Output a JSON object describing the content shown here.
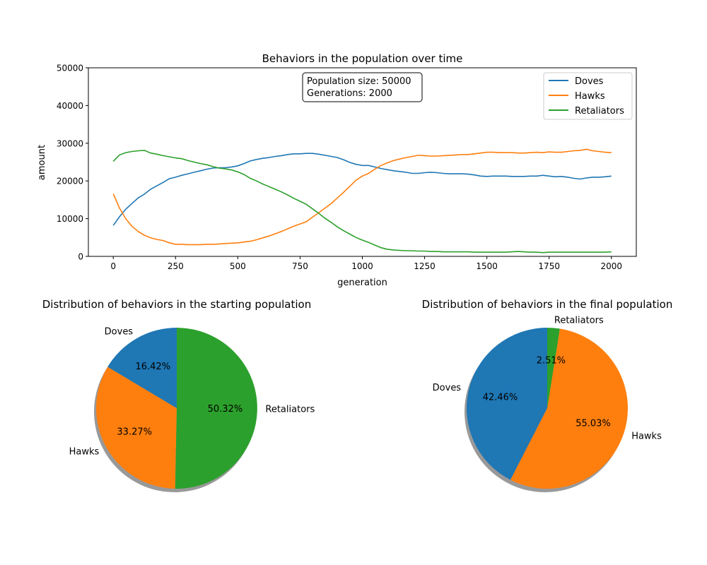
{
  "chart_data": [
    {
      "type": "line",
      "title": "Behaviors in the population over time",
      "xlabel": "generation",
      "ylabel": "amount",
      "xlim": [
        -100,
        2100
      ],
      "ylim": [
        0,
        50000
      ],
      "x_ticks": [
        0,
        250,
        500,
        750,
        1000,
        1250,
        1500,
        1750,
        2000
      ],
      "y_ticks": [
        0,
        10000,
        20000,
        30000,
        40000,
        50000
      ],
      "grid": false,
      "legend_position": "top-right",
      "annotation_lines": [
        "Population size: 50000",
        "Generations: 2000"
      ],
      "series": [
        {
          "name": "Doves",
          "color": "#1f77b4",
          "x": [
            0,
            25,
            50,
            75,
            100,
            125,
            150,
            175,
            200,
            225,
            250,
            275,
            300,
            325,
            350,
            375,
            400,
            425,
            450,
            475,
            500,
            525,
            550,
            575,
            600,
            625,
            650,
            675,
            700,
            725,
            750,
            775,
            800,
            825,
            850,
            875,
            900,
            925,
            950,
            975,
            1000,
            1025,
            1050,
            1075,
            1100,
            1125,
            1150,
            1175,
            1200,
            1225,
            1250,
            1275,
            1300,
            1325,
            1350,
            1375,
            1400,
            1425,
            1450,
            1475,
            1500,
            1525,
            1550,
            1575,
            1600,
            1625,
            1650,
            1675,
            1700,
            1725,
            1750,
            1775,
            1800,
            1825,
            1850,
            1875,
            1900,
            1925,
            1950,
            1975,
            2000
          ],
          "values": [
            8200,
            10500,
            12500,
            14000,
            15500,
            16500,
            17800,
            18700,
            19600,
            20600,
            21000,
            21500,
            21900,
            22300,
            22700,
            23100,
            23400,
            23500,
            23500,
            23700,
            24000,
            24600,
            25300,
            25700,
            26000,
            26200,
            26500,
            26700,
            27000,
            27200,
            27200,
            27300,
            27300,
            27100,
            26800,
            26500,
            26200,
            25600,
            24900,
            24400,
            24100,
            24100,
            23700,
            23300,
            23000,
            22700,
            22500,
            22300,
            22000,
            22000,
            22200,
            22300,
            22200,
            22000,
            21900,
            21900,
            21900,
            21800,
            21600,
            21300,
            21200,
            21300,
            21300,
            21300,
            21200,
            21200,
            21200,
            21300,
            21300,
            21500,
            21300,
            21100,
            21200,
            21000,
            20700,
            20500,
            20800,
            21000,
            21000,
            21100,
            21300
          ]
        },
        {
          "name": "Hawks",
          "color": "#ff7f0e",
          "x": [
            0,
            25,
            50,
            75,
            100,
            125,
            150,
            175,
            200,
            225,
            250,
            275,
            300,
            325,
            350,
            375,
            400,
            425,
            450,
            475,
            500,
            525,
            550,
            575,
            600,
            625,
            650,
            675,
            700,
            725,
            750,
            775,
            800,
            825,
            850,
            875,
            900,
            925,
            950,
            975,
            1000,
            1025,
            1050,
            1075,
            1100,
            1125,
            1150,
            1175,
            1200,
            1225,
            1250,
            1275,
            1300,
            1325,
            1350,
            1375,
            1400,
            1425,
            1450,
            1475,
            1500,
            1525,
            1550,
            1575,
            1600,
            1625,
            1650,
            1675,
            1700,
            1725,
            1750,
            1775,
            1800,
            1825,
            1850,
            1875,
            1900,
            1925,
            1950,
            1975,
            2000
          ],
          "values": [
            16600,
            12800,
            10000,
            8000,
            6600,
            5600,
            4900,
            4500,
            4200,
            3600,
            3200,
            3200,
            3100,
            3100,
            3100,
            3200,
            3200,
            3300,
            3400,
            3500,
            3600,
            3800,
            4000,
            4400,
            4900,
            5400,
            6000,
            6600,
            7300,
            8000,
            8600,
            9200,
            10400,
            11600,
            12800,
            14000,
            15500,
            17000,
            18600,
            20200,
            21300,
            22000,
            23100,
            24100,
            24800,
            25400,
            25800,
            26200,
            26500,
            26800,
            26700,
            26600,
            26600,
            26700,
            26800,
            26900,
            27000,
            27000,
            27200,
            27400,
            27600,
            27600,
            27500,
            27500,
            27500,
            27400,
            27400,
            27500,
            27600,
            27500,
            27700,
            27600,
            27600,
            27800,
            28000,
            28100,
            28400,
            28000,
            27800,
            27600,
            27500
          ]
        },
        {
          "name": "Retaliators",
          "color": "#2ca02c",
          "x": [
            0,
            25,
            50,
            75,
            100,
            125,
            150,
            175,
            200,
            225,
            250,
            275,
            300,
            325,
            350,
            375,
            400,
            425,
            450,
            475,
            500,
            525,
            550,
            575,
            600,
            625,
            650,
            675,
            700,
            725,
            750,
            775,
            800,
            825,
            850,
            875,
            900,
            925,
            950,
            975,
            1000,
            1025,
            1050,
            1075,
            1100,
            1125,
            1150,
            1175,
            1200,
            1225,
            1250,
            1275,
            1300,
            1325,
            1350,
            1375,
            1400,
            1425,
            1450,
            1475,
            1500,
            1525,
            1550,
            1575,
            1600,
            1625,
            1650,
            1675,
            1700,
            1725,
            1750,
            1775,
            1800,
            1825,
            1850,
            1875,
            1900,
            1925,
            1950,
            1975,
            2000
          ],
          "values": [
            25200,
            26900,
            27500,
            27800,
            28000,
            28100,
            27400,
            27100,
            26700,
            26400,
            26100,
            25900,
            25400,
            25000,
            24600,
            24300,
            23800,
            23400,
            23200,
            22900,
            22400,
            21700,
            20700,
            20000,
            19200,
            18500,
            17800,
            17100,
            16300,
            15400,
            14600,
            13800,
            12600,
            11400,
            10100,
            9000,
            7800,
            6800,
            5900,
            5000,
            4300,
            3700,
            3000,
            2300,
            1900,
            1700,
            1600,
            1500,
            1500,
            1400,
            1400,
            1300,
            1300,
            1200,
            1200,
            1200,
            1200,
            1200,
            1100,
            1100,
            1100,
            1100,
            1100,
            1100,
            1200,
            1300,
            1200,
            1100,
            1100,
            1000,
            1100,
            1100,
            1100,
            1100,
            1100,
            1100,
            1100,
            1100,
            1100,
            1100,
            1200
          ]
        }
      ]
    },
    {
      "type": "pie",
      "title": "Distribution of behaviors in the starting population",
      "labels": [
        "Doves",
        "Hawks",
        "Retaliators"
      ],
      "values": [
        16.42,
        33.27,
        50.32
      ],
      "pct_labels": [
        "16.42%",
        "33.27%",
        "50.32%"
      ],
      "colors": [
        "#1f77b4",
        "#ff7f0e",
        "#2ca02c"
      ],
      "start_angle_deg": 90,
      "shadow": true
    },
    {
      "type": "pie",
      "title": "Distribution of behaviors in the final population",
      "labels": [
        "Doves",
        "Hawks",
        "Retaliators"
      ],
      "values": [
        42.46,
        55.03,
        2.51
      ],
      "pct_labels": [
        "42.46%",
        "55.03%",
        "2.51%"
      ],
      "colors": [
        "#1f77b4",
        "#ff7f0e",
        "#2ca02c"
      ],
      "start_angle_deg": 90,
      "shadow": true
    }
  ]
}
